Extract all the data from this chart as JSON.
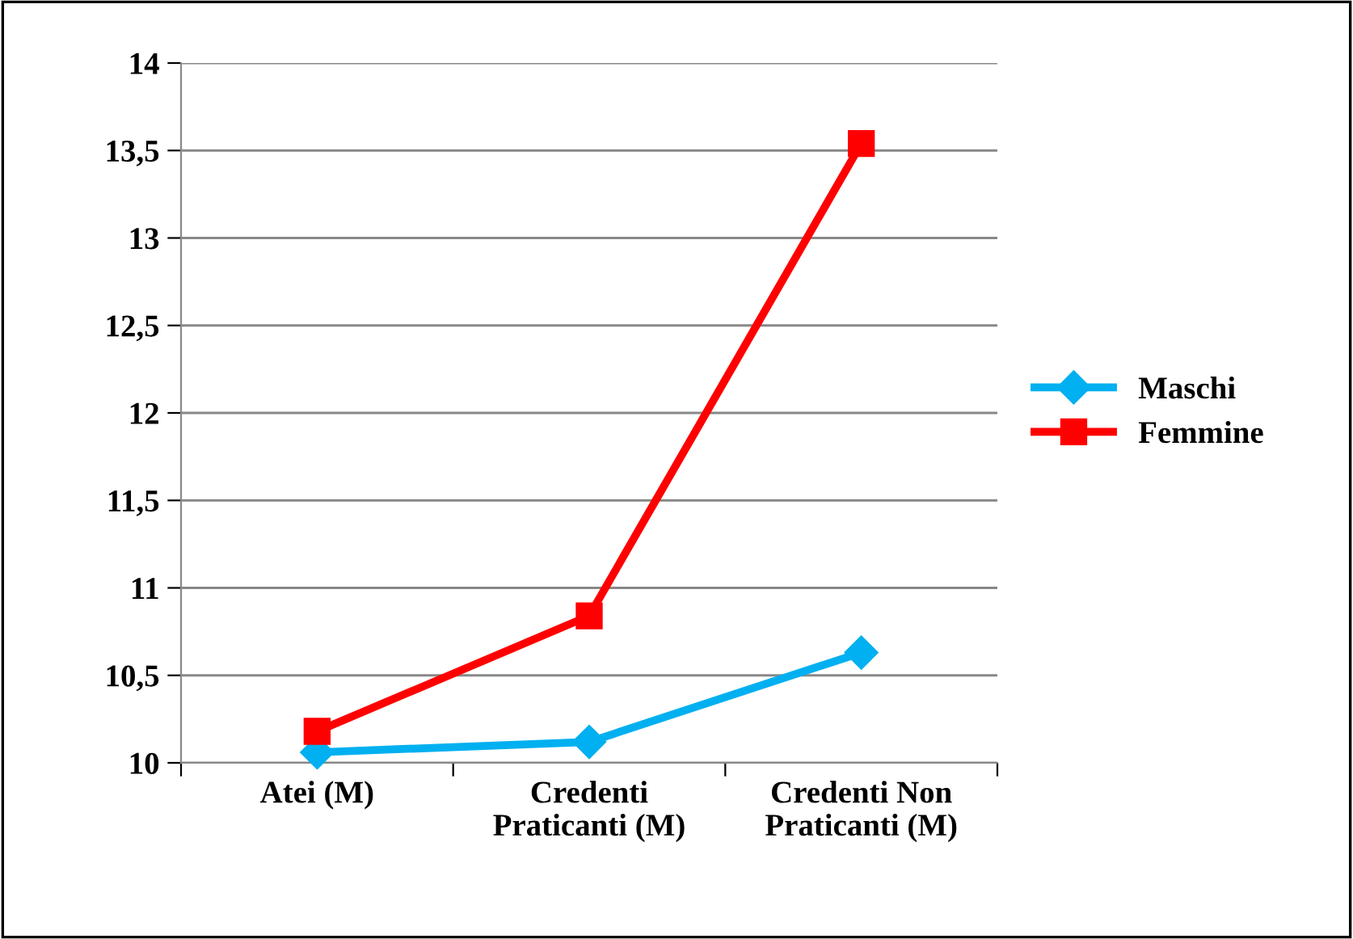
{
  "chart_data": {
    "type": "line",
    "categories": [
      "Atei (M)",
      "Credenti\nPraticanti (M)",
      "Credenti Non\nPraticanti (M)"
    ],
    "series": [
      {
        "name": "Maschi",
        "color": "#00b0f0",
        "values": [
          10.06,
          10.12,
          10.63
        ],
        "marker": "diamond"
      },
      {
        "name": "Femmine",
        "color": "#ff0000",
        "values": [
          10.18,
          10.84,
          13.54
        ],
        "marker": "square"
      }
    ],
    "ylim": [
      10,
      14
    ],
    "yticks": [
      10,
      {
        "value": 10.5,
        "label": "10,5"
      },
      11,
      {
        "value": 11.5,
        "label": "11,5"
      },
      12,
      {
        "value": 12.5,
        "label": "12,5"
      },
      13,
      {
        "value": 13.5,
        "label": "13,5"
      },
      14
    ],
    "grid": "y",
    "legend": "right",
    "line_style": "solid"
  }
}
